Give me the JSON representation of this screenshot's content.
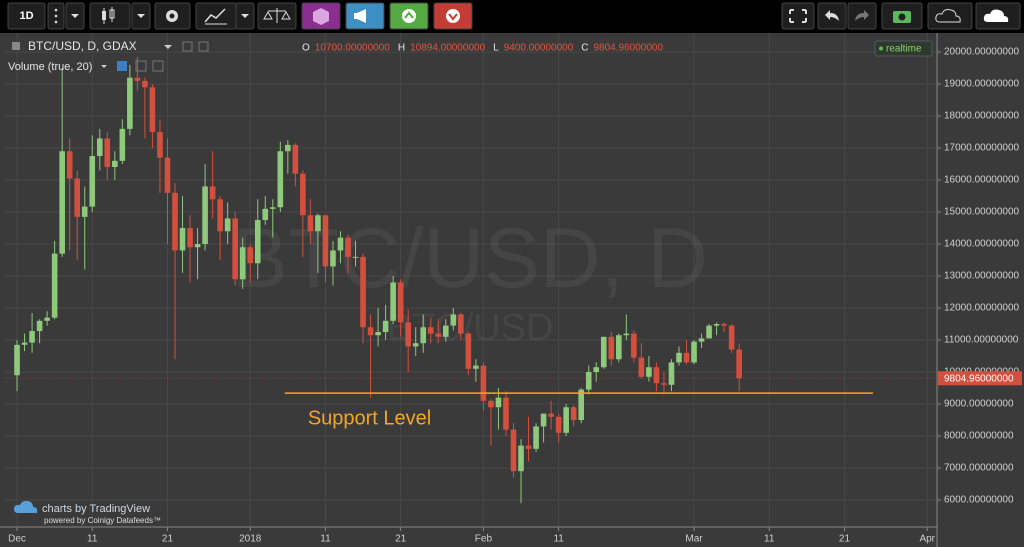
{
  "toolbar": {
    "interval": "1D"
  },
  "chart_data": {
    "type": "candlestick",
    "title": "BTC/USD, D, GDAX",
    "subtitle": "Volume (true, 20)",
    "watermark": "BTC/USD, D",
    "watermark_sub": "BTC/USD",
    "status": "realtime",
    "ohlc_header": [
      {
        "key": "O",
        "value": 10700,
        "label": "10700.00000000"
      },
      {
        "key": "H",
        "value": 10894,
        "label": "10894.00000000"
      },
      {
        "key": "L",
        "value": 9400,
        "label": "9400.00000000"
      },
      {
        "key": "C",
        "value": 9804.96,
        "label": "9804.96000000"
      }
    ],
    "x": [
      0,
      1,
      2,
      3,
      4,
      5,
      6,
      7,
      8,
      9,
      10,
      11,
      12,
      13,
      14,
      15,
      16,
      17,
      18,
      19,
      20,
      21,
      22,
      23,
      24,
      25,
      26,
      27,
      28,
      29,
      30,
      31,
      32,
      33,
      34,
      35,
      36,
      37,
      38,
      39,
      40,
      41,
      42,
      43,
      44,
      45,
      46,
      47,
      48,
      49,
      50,
      51,
      52,
      53,
      54,
      55,
      56,
      57,
      58,
      59,
      60,
      61,
      62,
      63,
      64,
      65,
      66,
      67,
      68,
      69,
      70,
      71,
      72,
      73,
      74,
      75,
      76,
      77,
      78,
      79,
      80,
      81,
      82,
      83,
      84,
      85,
      86,
      87,
      88,
      89,
      90,
      91,
      92,
      93,
      94,
      95,
      96
    ],
    "open": [
      9900,
      10850,
      10920,
      11280,
      11600,
      11700,
      13700,
      16900,
      16050,
      14850,
      15170,
      16750,
      17300,
      16410,
      16600,
      17600,
      19200,
      19100,
      18900,
      17500,
      16700,
      15600,
      13800,
      14500,
      13900,
      14000,
      15800,
      15400,
      14400,
      14800,
      12900,
      13900,
      13400,
      14750,
      15100,
      15150,
      16900,
      17100,
      16200,
      14900,
      14400,
      14900,
      13300,
      13800,
      14200,
      13600,
      13600,
      11400,
      11150,
      11250,
      11600,
      12800,
      11550,
      10800,
      10900,
      11400,
      11200,
      11100,
      11450,
      11800,
      11200,
      10100,
      10200,
      9100,
      8900,
      9200,
      8200,
      6900,
      7700,
      7600,
      8300,
      8700,
      8600,
      8100,
      8900,
      8500,
      9450,
      10000,
      10150,
      11100,
      10400,
      11150,
      11200,
      10450,
      9850,
      10150,
      9650,
      9600,
      10300,
      10600,
      10300,
      10950,
      11050,
      11450,
      11500,
      11450,
      10700
    ],
    "high": [
      11000,
      11200,
      11850,
      11650,
      11900,
      14100,
      19500,
      17300,
      16300,
      15800,
      17400,
      17600,
      17500,
      16900,
      17900,
      19600,
      19850,
      19200,
      19000,
      17900,
      17300,
      15900,
      15500,
      14900,
      14500,
      16500,
      16900,
      15500,
      15300,
      15000,
      14200,
      14000,
      15400,
      15500,
      15400,
      17200,
      17250,
      17150,
      16300,
      15400,
      14950,
      14900,
      14100,
      14400,
      14300,
      14100,
      13700,
      11800,
      12000,
      12100,
      13000,
      12900,
      11950,
      11400,
      11800,
      11700,
      11650,
      11650,
      12000,
      11850,
      11250,
      10400,
      10300,
      9150,
      9500,
      9400,
      8400,
      7900,
      8600,
      8400,
      8700,
      9100,
      8700,
      9000,
      8950,
      9500,
      10200,
      10300,
      11100,
      11250,
      11200,
      11800,
      11300,
      10900,
      10500,
      10300,
      10000,
      10400,
      10800,
      11000,
      11000,
      11200,
      11500,
      11550,
      11550,
      11500,
      10894
    ],
    "low": [
      9400,
      10650,
      10600,
      10900,
      11450,
      11650,
      13600,
      13800,
      13500,
      13200,
      15000,
      16300,
      16000,
      16000,
      16500,
      17400,
      18800,
      17300,
      17000,
      15600,
      14000,
      10400,
      13100,
      12800,
      12900,
      13800,
      14800,
      13500,
      14000,
      12700,
      12600,
      12800,
      12900,
      14600,
      14200,
      15000,
      16200,
      15800,
      13600,
      14000,
      13100,
      12800,
      12700,
      13400,
      13100,
      13300,
      10900,
      9200,
      10800,
      11000,
      11500,
      11100,
      10000,
      10500,
      10600,
      10900,
      10900,
      10950,
      11300,
      11000,
      9900,
      9700,
      8800,
      7700,
      8200,
      8000,
      6700,
      5900,
      7200,
      7500,
      7800,
      8200,
      7800,
      8000,
      8300,
      8400,
      9300,
      9700,
      10100,
      10200,
      10300,
      11000,
      10300,
      9800,
      9700,
      9400,
      9300,
      9400,
      10200,
      10250,
      10250,
      10750,
      11050,
      11150,
      11250,
      10600,
      9400
    ],
    "close": [
      10850,
      10920,
      11280,
      11600,
      11700,
      13700,
      16900,
      16050,
      14850,
      15170,
      16750,
      17300,
      16410,
      16600,
      17600,
      19200,
      19100,
      18900,
      17500,
      16700,
      15600,
      13800,
      14500,
      13900,
      14000,
      15800,
      15400,
      14400,
      14800,
      12900,
      13900,
      13400,
      14750,
      15100,
      15150,
      16900,
      17100,
      16200,
      14900,
      14400,
      14900,
      13300,
      13800,
      14200,
      13600,
      13600,
      11400,
      11150,
      11250,
      11600,
      12800,
      11550,
      10800,
      10900,
      11400,
      11200,
      11100,
      11450,
      11800,
      11200,
      10100,
      10200,
      9100,
      8900,
      9200,
      8200,
      6900,
      7700,
      7600,
      8300,
      8700,
      8600,
      8100,
      8900,
      8500,
      9450,
      10000,
      10150,
      11100,
      10400,
      11150,
      11200,
      10450,
      9850,
      10150,
      9650,
      9600,
      10300,
      10600,
      10300,
      10950,
      11050,
      11450,
      11500,
      11450,
      10700,
      9804.96
    ],
    "up_color": "#8fc97c",
    "down_color": "#d4503e",
    "xlim": [
      -1.6,
      122.3
    ],
    "xticks": [
      {
        "value": 0,
        "label": "Dec"
      },
      {
        "value": 10,
        "label": "11"
      },
      {
        "value": 20,
        "label": "21"
      },
      {
        "value": 31,
        "label": "2018"
      },
      {
        "value": 41,
        "label": "11"
      },
      {
        "value": 51,
        "label": "21"
      },
      {
        "value": 62,
        "label": "Feb"
      },
      {
        "value": 72,
        "label": "11"
      },
      {
        "value": 90,
        "label": "Mar"
      },
      {
        "value": 100,
        "label": "11"
      },
      {
        "value": 110,
        "label": "21"
      },
      {
        "value": 121,
        "label": "Apr"
      }
    ],
    "ylim": [
      5156,
      20440
    ],
    "yticks": [
      {
        "value": 6000,
        "label": "6000.00000000"
      },
      {
        "value": 7000,
        "label": "7000.00000000"
      },
      {
        "value": 8000,
        "label": "8000.00000000"
      },
      {
        "value": 9000,
        "label": "9000.00000000"
      },
      {
        "value": 10000,
        "label": "10000.00000000"
      },
      {
        "value": 11000,
        "label": "11000.00000000"
      },
      {
        "value": 12000,
        "label": "12000.00000000"
      },
      {
        "value": 13000,
        "label": "13000.00000000"
      },
      {
        "value": 14000,
        "label": "14000.00000000"
      },
      {
        "value": 15000,
        "label": "15000.00000000"
      },
      {
        "value": 16000,
        "label": "16000.00000000"
      },
      {
        "value": 17000,
        "label": "17000.00000000"
      },
      {
        "value": 18000,
        "label": "18000.00000000"
      },
      {
        "value": 19000,
        "label": "19000.00000000"
      },
      {
        "value": 20000,
        "label": "20000.00000000"
      }
    ],
    "grid": true,
    "last_price": {
      "value": 9804.96,
      "label": "9804.96000000"
    },
    "annotations": [
      {
        "text": "Support Level",
        "value": 9340,
        "x": [
          35.6,
          113.8
        ],
        "color": "#f5a623"
      }
    ]
  },
  "footer": {
    "brand": "charts by TradingView",
    "powered": "powered by Coinigy Datafeeds™"
  }
}
